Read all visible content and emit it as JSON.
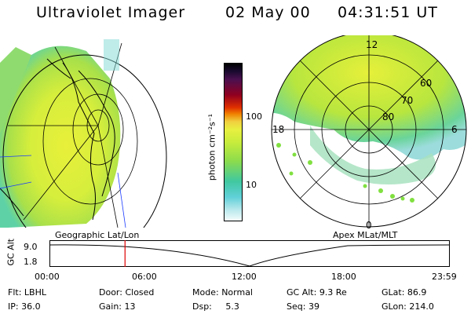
{
  "header": {
    "instrument": "Ultraviolet Imager",
    "date": "02 May 00",
    "time": "04:31:51 UT"
  },
  "left_panel": {
    "label": "Geographic Lat/Lon"
  },
  "right_panel": {
    "label": "Apex MLat/MLT",
    "mlt_labels": {
      "top": "12",
      "left": "18",
      "right": "6",
      "bottom": "0"
    },
    "lat_labels": [
      "60",
      "70",
      "80"
    ]
  },
  "colorbar": {
    "unit": "photon cm⁻²s⁻¹",
    "ticks": [
      "100",
      "10"
    ]
  },
  "timeline": {
    "ylabel": "GC Alt",
    "y_ticks": [
      "9.0",
      "1.8"
    ],
    "x_ticks": [
      "00:00",
      "06:00",
      "12:00",
      "18:00",
      "23:59"
    ],
    "current_time_hours": 4.53,
    "marker_color": "#e00000"
  },
  "status": {
    "row1": [
      {
        "label": "Flt:",
        "value": "LBHL"
      },
      {
        "label": "Door:",
        "value": "Closed"
      },
      {
        "label": "Mode:",
        "value": "Normal"
      },
      {
        "label": "GC Alt:",
        "value": "9.3 Re"
      },
      {
        "label": "GLat:",
        "value": "86.9"
      }
    ],
    "row2": [
      {
        "label": "IP:",
        "value": "36.0"
      },
      {
        "label": "Gain:",
        "value": "13"
      },
      {
        "label": "Dsp:",
        "value": "5.3"
      },
      {
        "label": "Seq:",
        "value": "39"
      },
      {
        "label": "GLon:",
        "value": "214.0"
      }
    ]
  }
}
